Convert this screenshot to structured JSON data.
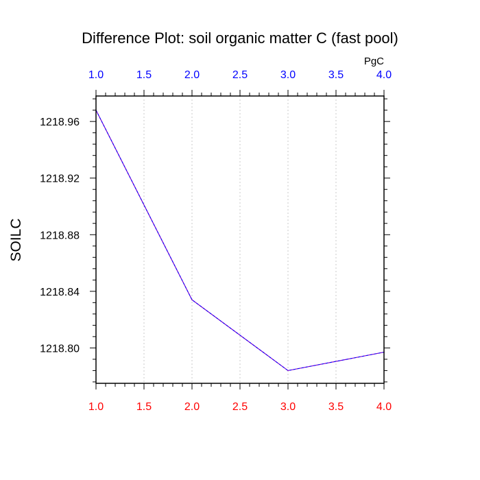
{
  "chart_data": {
    "type": "line",
    "title": "Difference Plot: soil organic matter C (fast pool)",
    "units_label": "PgC",
    "ylabel": "SOILC",
    "xlabel": "",
    "x": [
      1.0,
      2.0,
      3.0,
      4.0
    ],
    "series": [
      {
        "values": [
          1218.968,
          1218.834,
          1218.784,
          1218.797
        ],
        "color": "#7a00cc",
        "dash_color": "#0000ff"
      }
    ],
    "xlim": [
      1.0,
      4.0
    ],
    "ylim": [
      1218.775,
      1218.978
    ],
    "x_ticks": [
      1.0,
      1.5,
      2.0,
      2.5,
      3.0,
      3.5,
      4.0
    ],
    "x_tick_labels": [
      "1.0",
      "1.5",
      "2.0",
      "2.5",
      "3.0",
      "3.5",
      "4.0"
    ],
    "y_ticks": [
      1218.8,
      1218.84,
      1218.88,
      1218.92,
      1218.96
    ],
    "y_tick_labels": [
      "1218.80",
      "1218.84",
      "1218.88",
      "1218.92",
      "1218.96"
    ],
    "grid": "vertical dotted",
    "bottom_tick_color": "#ff0000",
    "top_tick_color": "#0000ff"
  }
}
